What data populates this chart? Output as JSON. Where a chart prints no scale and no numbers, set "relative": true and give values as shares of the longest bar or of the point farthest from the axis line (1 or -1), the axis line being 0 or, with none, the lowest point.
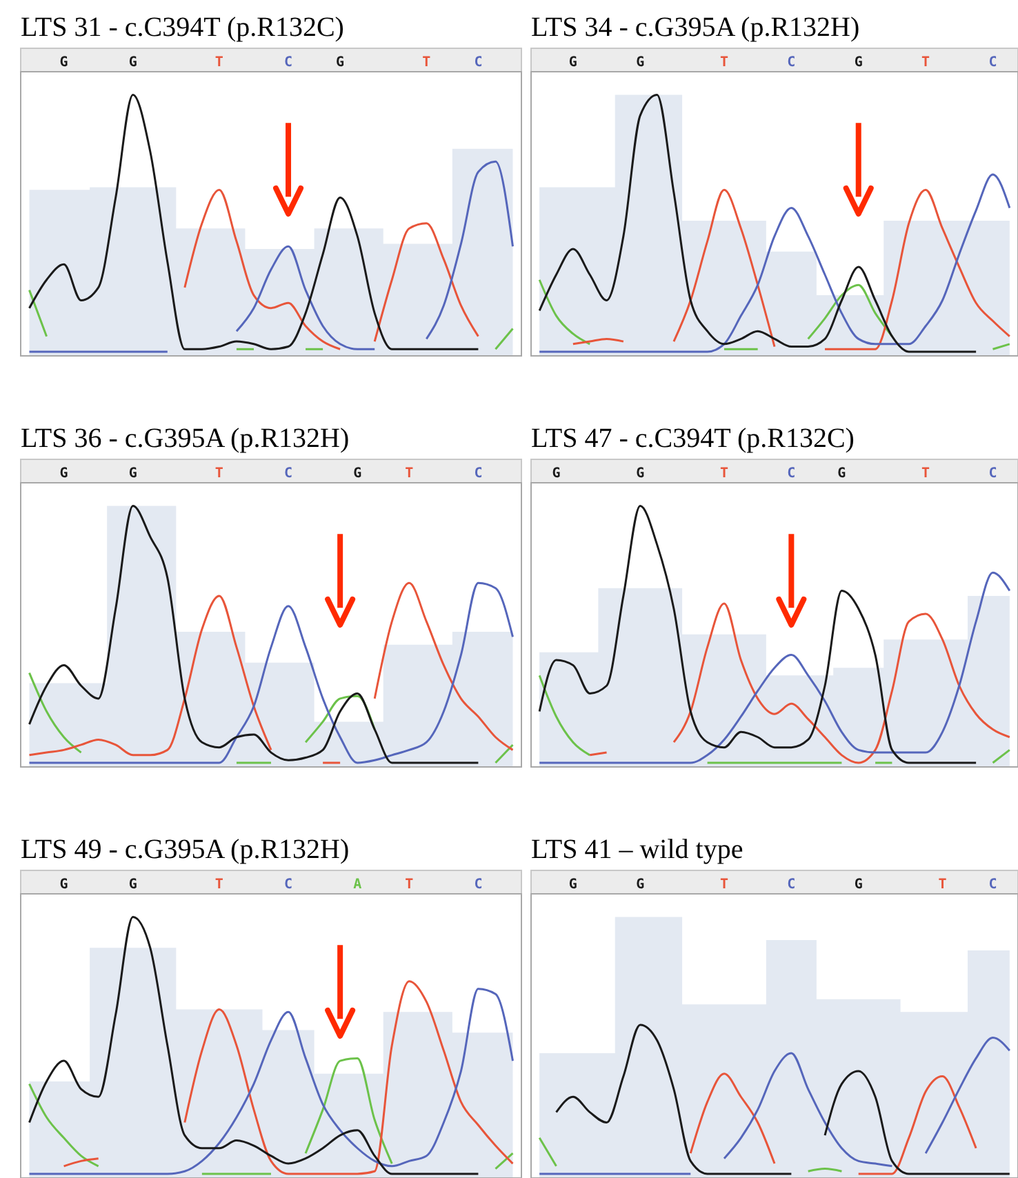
{
  "chart_data": [
    {
      "type": "line",
      "title": "LTS 31 - c.C394T (p.R132C)",
      "relative": true,
      "categories": [
        null,
        null,
        "G",
        null,
        null,
        null,
        "G",
        null,
        null,
        null,
        null,
        "T",
        null,
        null,
        null,
        "C",
        null,
        null,
        "G",
        null,
        null,
        null,
        null,
        "T",
        null,
        null,
        "C",
        null,
        null
      ],
      "series": [
        {
          "type": "area",
          "color": "#e3e9f2",
          "values": [
            0.63,
            0.63,
            0.63,
            0.63,
            0.64,
            0.64,
            0.64,
            0.64,
            0.64,
            0.48,
            0.48,
            0.48,
            0.48,
            0.4,
            0.4,
            0.4,
            0.4,
            0.48,
            0.48,
            0.48,
            0.48,
            0.42,
            0.42,
            0.42,
            0.42,
            0.79,
            0.79,
            0.79,
            0.79
          ]
        },
        {
          "color": "#6cc24a",
          "values": [
            0.24,
            0.06,
            null,
            null,
            null,
            null,
            null,
            null,
            null,
            null,
            null,
            null,
            0.01,
            0.01,
            null,
            null,
            0.01,
            0.01,
            null,
            null,
            null,
            null,
            null,
            null,
            null,
            null,
            null,
            0.01,
            0.09
          ]
        },
        {
          "color": "#e8553a",
          "values": [
            null,
            null,
            null,
            null,
            null,
            null,
            null,
            null,
            null,
            0.25,
            0.5,
            0.63,
            0.43,
            0.22,
            0.17,
            0.19,
            0.1,
            0.04,
            0.01,
            null,
            0.04,
            0.28,
            0.48,
            0.5,
            0.36,
            0.18,
            0.06,
            null,
            null
          ]
        },
        {
          "color": "#5566bb",
          "values": [
            0,
            0,
            0,
            0,
            0,
            0,
            0,
            0,
            0,
            null,
            null,
            null,
            0.08,
            0.17,
            0.32,
            0.41,
            0.24,
            0.1,
            0.03,
            0.01,
            0.01,
            null,
            null,
            0.05,
            0.18,
            0.42,
            0.7,
            0.74,
            0.41
          ]
        },
        {
          "color": "#1a1a1a",
          "values": [
            0.17,
            0.28,
            0.34,
            0.2,
            0.25,
            0.6,
            1,
            0.78,
            0.35,
            0.01,
            0.01,
            0.02,
            0.04,
            0.03,
            0.01,
            0.02,
            0.15,
            0.38,
            0.6,
            0.45,
            0.15,
            0.01,
            0.01,
            0.01,
            0.01,
            0.01,
            0.01,
            null,
            null
          ]
        }
      ]
    },
    {
      "type": "line",
      "title": "LTS 34 - c.G395A (p.R132H)",
      "relative": true,
      "categories": [
        null,
        null,
        "G",
        null,
        null,
        null,
        "G",
        null,
        null,
        null,
        null,
        "T",
        null,
        null,
        null,
        "C",
        null,
        null,
        null,
        "G",
        null,
        null,
        null,
        "T",
        null,
        null,
        null,
        "C",
        null
      ],
      "series": [
        {
          "type": "area",
          "color": "#e3e9f2",
          "values": [
            0.64,
            0.64,
            0.64,
            0.64,
            0.64,
            1,
            1,
            1,
            1,
            0.51,
            0.51,
            0.51,
            0.51,
            0.51,
            0.39,
            0.39,
            0.39,
            0.22,
            0.22,
            0.22,
            0.22,
            0.51,
            0.51,
            0.51,
            0.51,
            0.51,
            0.51,
            0.51,
            0.51
          ]
        },
        {
          "color": "#6cc24a",
          "values": [
            0.28,
            0.14,
            0.07,
            0.03,
            null,
            null,
            null,
            null,
            null,
            null,
            null,
            0.01,
            0.01,
            0.01,
            null,
            null,
            0.05,
            0.13,
            0.22,
            0.26,
            0.15,
            0.06,
            null,
            null,
            null,
            null,
            null,
            0.01,
            0.03
          ]
        },
        {
          "color": "#e8553a",
          "values": [
            null,
            null,
            0.03,
            0.04,
            0.05,
            0.04,
            null,
            null,
            0.04,
            0.2,
            0.43,
            0.63,
            0.48,
            0.26,
            0.02,
            null,
            null,
            0.01,
            0.01,
            0.01,
            0.01,
            0.2,
            0.5,
            0.63,
            0.48,
            0.33,
            0.19,
            0.12,
            0.06
          ]
        },
        {
          "color": "#5566bb",
          "values": [
            0,
            0,
            0,
            0,
            0,
            0,
            0,
            0,
            0,
            0,
            0,
            0.03,
            0.14,
            0.26,
            0.45,
            0.56,
            0.45,
            0.3,
            0.15,
            0.05,
            0.03,
            0.03,
            0.03,
            0.1,
            0.2,
            0.38,
            0.55,
            0.69,
            0.56
          ]
        },
        {
          "color": "#1a1a1a",
          "values": [
            0.16,
            0.3,
            0.4,
            0.3,
            0.2,
            0.45,
            0.92,
            1,
            0.62,
            0.2,
            0.08,
            0.03,
            0.05,
            0.08,
            0.05,
            0.02,
            0.02,
            0.05,
            0.2,
            0.33,
            0.2,
            0.06,
            0,
            0,
            0,
            0,
            0,
            null,
            null
          ]
        }
      ]
    },
    {
      "type": "line",
      "title": "LTS 36 - c.G395A (p.R132H)",
      "relative": true,
      "categories": [
        null,
        null,
        "G",
        null,
        null,
        null,
        "G",
        null,
        null,
        null,
        null,
        "T",
        null,
        null,
        null,
        "C",
        null,
        null,
        null,
        "G",
        null,
        null,
        "T",
        null,
        null,
        null,
        "C",
        null,
        null
      ],
      "series": [
        {
          "type": "area",
          "color": "#e3e9f2",
          "values": [
            0.31,
            0.31,
            0.31,
            0.31,
            0.31,
            1,
            1,
            1,
            1,
            0.51,
            0.51,
            0.51,
            0.51,
            0.39,
            0.39,
            0.39,
            0.39,
            0.16,
            0.16,
            0.16,
            0.16,
            0.46,
            0.46,
            0.46,
            0.46,
            0.51,
            0.51,
            0.51,
            0.51
          ]
        },
        {
          "color": "#6cc24a",
          "values": [
            0.35,
            0.2,
            0.1,
            0.04,
            null,
            null,
            null,
            null,
            null,
            null,
            null,
            null,
            0,
            0,
            0,
            null,
            0.08,
            0.16,
            0.25,
            0.26,
            0.13,
            null,
            null,
            null,
            null,
            null,
            null,
            0,
            0.07
          ]
        },
        {
          "color": "#e8553a",
          "values": [
            0.03,
            0.04,
            0.05,
            0.07,
            0.09,
            0.07,
            0.03,
            0.03,
            0.05,
            0.25,
            0.52,
            0.65,
            0.45,
            0.22,
            0.05,
            null,
            null,
            0,
            0,
            null,
            0.25,
            0.55,
            0.7,
            0.55,
            0.38,
            0.25,
            0.18,
            0.1,
            0.05
          ]
        },
        {
          "color": "#5566bb",
          "values": [
            0,
            0,
            0,
            0,
            0,
            0,
            0,
            0,
            0,
            0,
            0,
            0,
            0.1,
            0.22,
            0.45,
            0.61,
            0.45,
            0.25,
            0.1,
            0,
            0.01,
            0.03,
            0.05,
            0.08,
            0.2,
            0.42,
            0.7,
            0.68,
            0.49
          ]
        },
        {
          "color": "#1a1a1a",
          "values": [
            0.15,
            0.3,
            0.38,
            0.3,
            0.25,
            0.6,
            1,
            0.88,
            0.72,
            0.25,
            0.08,
            0.06,
            0.1,
            0.11,
            0.04,
            0.01,
            0.02,
            0.05,
            0.2,
            0.27,
            0.13,
            0,
            0,
            0,
            0,
            0,
            0,
            null,
            null
          ]
        }
      ]
    },
    {
      "type": "line",
      "title": "LTS 47 - c.C394T (p.R132C)",
      "relative": true,
      "categories": [
        null,
        "G",
        null,
        null,
        null,
        null,
        "G",
        null,
        null,
        null,
        null,
        "T",
        null,
        null,
        null,
        "C",
        null,
        null,
        "G",
        null,
        null,
        null,
        null,
        "T",
        null,
        null,
        null,
        "C",
        null
      ],
      "series": [
        {
          "type": "area",
          "color": "#e3e9f2",
          "values": [
            0.43,
            0.43,
            0.43,
            0.43,
            0.68,
            0.68,
            0.68,
            0.68,
            0.68,
            0.5,
            0.5,
            0.5,
            0.5,
            0.5,
            0.34,
            0.34,
            0.34,
            0.34,
            0.37,
            0.37,
            0.37,
            0.48,
            0.48,
            0.48,
            0.48,
            0.48,
            0.65,
            0.65,
            0.65
          ]
        },
        {
          "color": "#6cc24a",
          "values": [
            0.34,
            0.18,
            0.08,
            0.03,
            null,
            null,
            null,
            null,
            null,
            null,
            0,
            0,
            0,
            0,
            0,
            0,
            0,
            0,
            0,
            null,
            0,
            0,
            null,
            null,
            null,
            null,
            null,
            0,
            0.05
          ]
        },
        {
          "color": "#e8553a",
          "values": [
            null,
            null,
            null,
            0.03,
            0.04,
            null,
            null,
            null,
            0.08,
            0.2,
            0.45,
            0.62,
            0.4,
            0.25,
            0.19,
            0.23,
            0.17,
            0.1,
            0.03,
            0,
            0.05,
            0.28,
            0.55,
            0.58,
            0.48,
            0.3,
            0.19,
            0.13,
            0.1
          ]
        },
        {
          "color": "#5566bb",
          "values": [
            0,
            0,
            0,
            0,
            0,
            0,
            0,
            0,
            0,
            0,
            0.03,
            0.09,
            0.18,
            0.28,
            0.37,
            0.42,
            0.34,
            0.24,
            0.12,
            0.05,
            0.04,
            0.04,
            0.04,
            0.04,
            0.12,
            0.3,
            0.55,
            0.74,
            0.67
          ]
        },
        {
          "color": "#1a1a1a",
          "values": [
            0.2,
            0.4,
            0.38,
            0.27,
            0.3,
            0.65,
            1,
            0.85,
            0.6,
            0.2,
            0.08,
            0.06,
            0.12,
            0.1,
            0.06,
            0.06,
            0.09,
            0.3,
            0.67,
            0.6,
            0.42,
            0.05,
            0,
            0,
            0,
            0,
            0,
            null,
            null
          ]
        }
      ]
    },
    {
      "type": "line",
      "title": "LTS 49 - c.G395A (p.R132H)",
      "relative": true,
      "categories": [
        null,
        null,
        "G",
        null,
        null,
        null,
        "G",
        null,
        null,
        null,
        null,
        "T",
        null,
        null,
        null,
        "C",
        null,
        null,
        null,
        "A",
        null,
        null,
        "T",
        null,
        null,
        null,
        "C",
        null,
        null
      ],
      "series": [
        {
          "type": "area",
          "color": "#e3e9f2",
          "values": [
            0.36,
            0.36,
            0.36,
            0.36,
            0.88,
            0.88,
            0.88,
            0.88,
            0.88,
            0.64,
            0.64,
            0.64,
            0.64,
            0.64,
            0.56,
            0.56,
            0.56,
            0.39,
            0.39,
            0.39,
            0.39,
            0.63,
            0.63,
            0.63,
            0.63,
            0.55,
            0.55,
            0.55,
            0.55
          ]
        },
        {
          "color": "#6cc24a",
          "values": [
            0.35,
            0.22,
            0.14,
            0.07,
            0.03,
            null,
            null,
            null,
            null,
            null,
            0,
            0,
            0,
            0,
            0,
            null,
            0.08,
            0.25,
            0.44,
            0.45,
            0.21,
            0.04,
            null,
            null,
            null,
            null,
            null,
            0.02,
            0.08
          ]
        },
        {
          "color": "#e8553a",
          "values": [
            null,
            null,
            0.03,
            0.05,
            0.06,
            null,
            null,
            null,
            null,
            0.2,
            0.48,
            0.64,
            0.5,
            0.25,
            0.05,
            0,
            0,
            0,
            0,
            0,
            0.01,
            0.5,
            0.75,
            0.67,
            0.48,
            0.28,
            0.19,
            0.11,
            0.04
          ]
        },
        {
          "color": "#5566bb",
          "values": [
            0,
            0,
            0,
            0,
            0,
            0,
            0,
            0,
            0,
            0.01,
            0.05,
            0.12,
            0.22,
            0.35,
            0.52,
            0.63,
            0.45,
            0.27,
            0.17,
            0.1,
            0.05,
            0.03,
            0.05,
            0.07,
            0.2,
            0.4,
            0.72,
            0.7,
            0.44
          ]
        },
        {
          "color": "#1a1a1a",
          "values": [
            0.2,
            0.36,
            0.44,
            0.33,
            0.3,
            0.62,
            1,
            0.88,
            0.5,
            0.15,
            0.1,
            0.1,
            0.13,
            0.11,
            0.07,
            0.04,
            0.06,
            0.1,
            0.15,
            0.17,
            0.07,
            0,
            0,
            0,
            0,
            0,
            0,
            null,
            null
          ]
        }
      ]
    },
    {
      "type": "line",
      "title": "LTS 41 – wild type",
      "relative": true,
      "categories": [
        null,
        null,
        "G",
        null,
        null,
        null,
        "G",
        null,
        null,
        null,
        null,
        "T",
        null,
        null,
        null,
        "C",
        null,
        null,
        null,
        "G",
        null,
        null,
        null,
        null,
        "T",
        null,
        null,
        "C",
        null
      ],
      "series": [
        {
          "type": "area",
          "color": "#e3e9f2",
          "values": [
            0.47,
            0.47,
            0.47,
            0.47,
            0.47,
            1,
            1,
            1,
            1,
            0.66,
            0.66,
            0.66,
            0.66,
            0.66,
            0.91,
            0.91,
            0.91,
            0.68,
            0.68,
            0.68,
            0.68,
            0.68,
            0.63,
            0.63,
            0.63,
            0.63,
            0.87,
            0.87,
            0.87
          ]
        },
        {
          "color": "#6cc24a",
          "values": [
            0.14,
            0.03,
            null,
            null,
            null,
            null,
            null,
            null,
            null,
            null,
            null,
            null,
            null,
            null,
            null,
            null,
            0.01,
            0.02,
            0.01,
            null,
            null,
            null,
            null,
            null,
            null,
            null,
            null,
            null,
            null
          ]
        },
        {
          "color": "#e8553a",
          "values": [
            null,
            null,
            null,
            null,
            null,
            null,
            null,
            null,
            null,
            0.08,
            0.28,
            0.39,
            0.3,
            0.2,
            0.04,
            null,
            null,
            null,
            null,
            0,
            0,
            0,
            0.14,
            0.32,
            0.38,
            0.26,
            0.1,
            null,
            null
          ]
        },
        {
          "color": "#5566bb",
          "values": [
            0,
            0,
            0,
            0,
            0,
            0,
            0,
            0,
            0,
            0,
            null,
            0.06,
            0.14,
            0.25,
            0.4,
            0.47,
            0.33,
            0.2,
            0.1,
            0.05,
            0.04,
            0.03,
            null,
            0.08,
            0.2,
            0.33,
            0.45,
            0.53,
            0.48
          ]
        },
        {
          "color": "#1a1a1a",
          "values": [
            null,
            0.24,
            0.3,
            0.24,
            0.2,
            0.38,
            0.58,
            0.52,
            0.33,
            0.05,
            0,
            0,
            0,
            0,
            0,
            0,
            null,
            0.15,
            0.35,
            0.4,
            0.3,
            0.05,
            0,
            0,
            0,
            0,
            0,
            0,
            0
          ]
        }
      ]
    }
  ]
}
